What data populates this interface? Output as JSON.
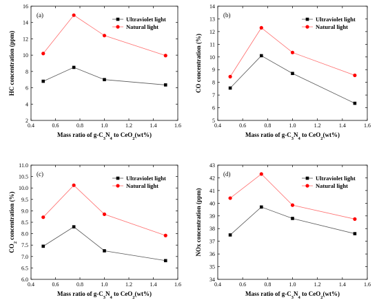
{
  "chart_data": [
    {
      "type": "line",
      "panel_label": "(a)",
      "x": [
        0.5,
        0.75,
        1.0,
        1.5
      ],
      "xlim": [
        0.4,
        1.6
      ],
      "xticks": [
        "0.4",
        "0.6",
        "0.8",
        "1.0",
        "1.2",
        "1.4",
        "1.6"
      ],
      "xlabel_parts": [
        "Mass ratio of g-C",
        "3",
        "N",
        "4",
        " to CeO",
        "2",
        "(wt%)"
      ],
      "ylabel_parts": [
        "HC concentration (ppm)"
      ],
      "ylim": [
        2,
        16
      ],
      "yticks": [
        "2",
        "4",
        "6",
        "8",
        "10",
        "12",
        "14",
        "16"
      ],
      "legend_position": "top-right",
      "series": [
        {
          "name": "Ultraviolet light",
          "color": "#000000",
          "marker": "square",
          "values": [
            6.8,
            8.5,
            7.0,
            6.35
          ]
        },
        {
          "name": "Natural light",
          "color": "#ff0000",
          "marker": "circle",
          "values": [
            10.2,
            14.9,
            12.4,
            9.95
          ]
        }
      ]
    },
    {
      "type": "line",
      "panel_label": "(b)",
      "x": [
        0.5,
        0.75,
        1.0,
        1.5
      ],
      "xlim": [
        0.4,
        1.6
      ],
      "xticks": [
        "0.4",
        "0.6",
        "0.8",
        "1.0",
        "1.2",
        "1.4",
        "1.6"
      ],
      "xlabel_parts": [
        "Mass ratio of g-C",
        "3",
        "N",
        "4",
        " to CeO",
        "2",
        "(wt%)"
      ],
      "ylabel_parts": [
        "CO concentration (%)"
      ],
      "ylim": [
        5,
        14
      ],
      "yticks": [
        "5",
        "6",
        "7",
        "8",
        "9",
        "10",
        "11",
        "12",
        "13",
        "14"
      ],
      "legend_position": "top-right",
      "series": [
        {
          "name": "Ultraviolet light",
          "color": "#000000",
          "marker": "square",
          "values": [
            7.55,
            10.1,
            8.7,
            6.35
          ]
        },
        {
          "name": "Natural light",
          "color": "#ff0000",
          "marker": "circle",
          "values": [
            8.45,
            12.3,
            10.35,
            8.55
          ]
        }
      ]
    },
    {
      "type": "line",
      "panel_label": "(c)",
      "x": [
        0.5,
        0.75,
        1.0,
        1.5
      ],
      "xlim": [
        0.4,
        1.6
      ],
      "xticks": [
        "0.4",
        "0.6",
        "0.8",
        "1.0",
        "1.2",
        "1.4",
        "1.6"
      ],
      "xlabel_parts": [
        "Mass ratio of g-C",
        "3",
        "N",
        "4",
        " to CeO",
        "2",
        "(wt%)"
      ],
      "ylabel_parts": [
        "CO",
        "2",
        " concentration (%)"
      ],
      "ylim": [
        6.0,
        11.0
      ],
      "yticks": [
        "6.0",
        "6.5",
        "7.0",
        "7.5",
        "8.0",
        "8.5",
        "9.0",
        "9.5",
        "10.0",
        "10.5",
        "11.0"
      ],
      "legend_position": "top-right",
      "series": [
        {
          "name": "Ultraviolet light",
          "color": "#000000",
          "marker": "square",
          "values": [
            7.45,
            8.3,
            7.25,
            6.82
          ]
        },
        {
          "name": "Natural light",
          "color": "#ff0000",
          "marker": "circle",
          "values": [
            8.72,
            10.12,
            8.85,
            7.92
          ]
        }
      ]
    },
    {
      "type": "line",
      "panel_label": "(d)",
      "x": [
        0.5,
        0.75,
        1.0,
        1.5
      ],
      "xlim": [
        0.4,
        1.6
      ],
      "xticks": [
        "0.4",
        "0.6",
        "0.8",
        "1.0",
        "1.2",
        "1.4",
        "1.6"
      ],
      "xlabel_parts": [
        "Mass ratio of g-C",
        "3",
        "N",
        "4",
        " to CeO",
        "2",
        "(wt%)"
      ],
      "ylabel_parts": [
        "NOx concentration (ppm)"
      ],
      "ylim": [
        34,
        43
      ],
      "yticks": [
        "34",
        "35",
        "36",
        "37",
        "38",
        "39",
        "40",
        "41",
        "42",
        "43"
      ],
      "legend_position": "top-right",
      "series": [
        {
          "name": "Ultraviolet light",
          "color": "#000000",
          "marker": "square",
          "values": [
            37.5,
            39.7,
            38.8,
            37.6
          ]
        },
        {
          "name": "Natural light",
          "color": "#ff0000",
          "marker": "circle",
          "values": [
            40.4,
            42.3,
            39.85,
            38.75
          ]
        }
      ]
    }
  ]
}
